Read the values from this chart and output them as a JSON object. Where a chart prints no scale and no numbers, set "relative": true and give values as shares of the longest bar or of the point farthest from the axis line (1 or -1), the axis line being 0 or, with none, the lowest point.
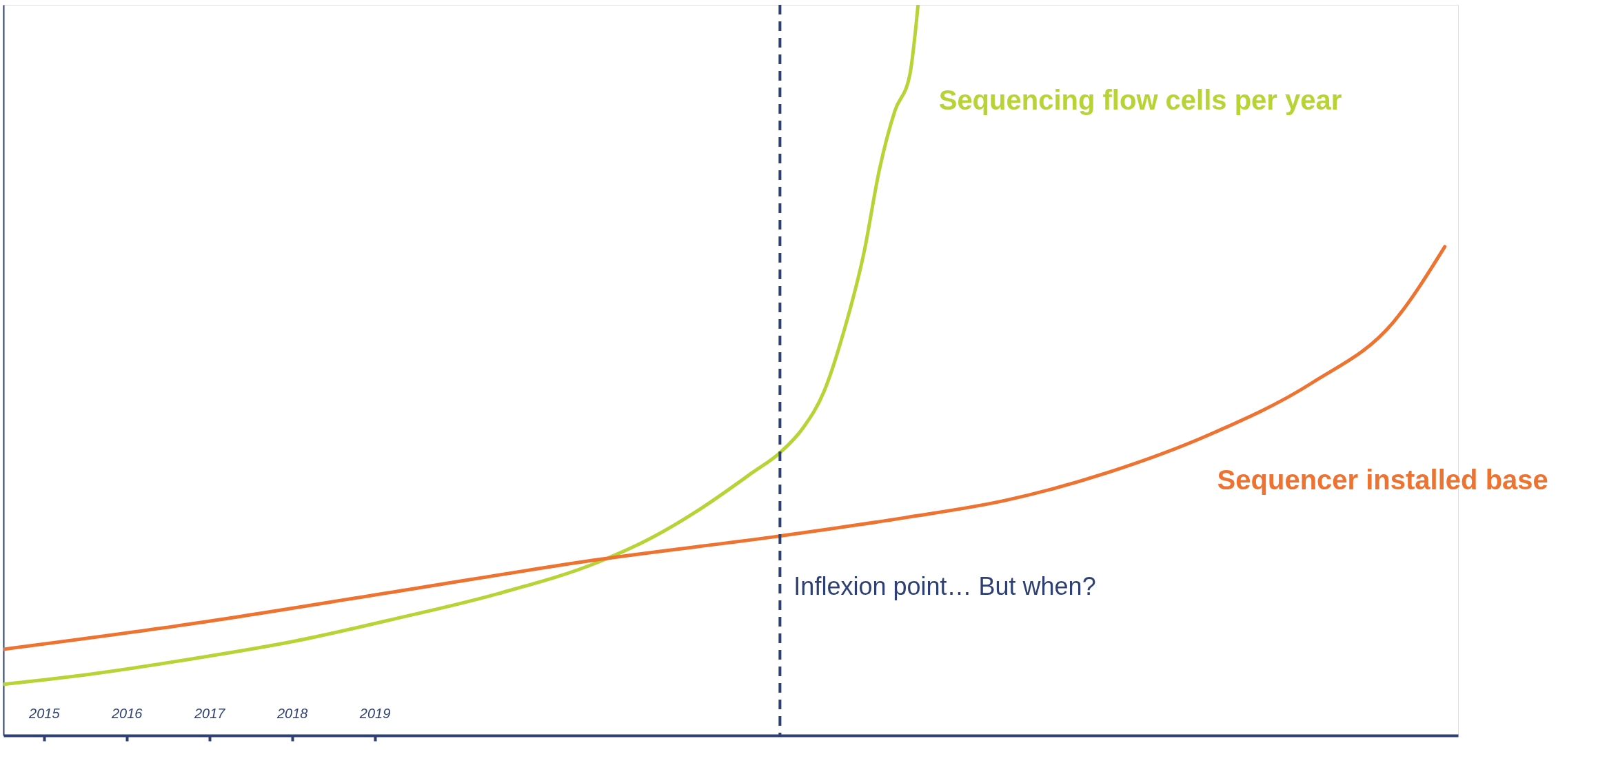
{
  "chart_data": {
    "type": "line",
    "relative": true,
    "xlim": [
      2014.51,
      2032.1
    ],
    "xticks": [
      2015,
      2016,
      2017,
      2018,
      2019
    ],
    "series": [
      {
        "name": "Sequencing flow cells per year",
        "color": "#b8d335",
        "x": [
          2014.51,
          2015.57,
          2016.8,
          2018.03,
          2019.26,
          2020.49,
          2021.72,
          2022.34,
          2022.95,
          2023.57,
          2023.9,
          2024.18,
          2024.43,
          2024.67,
          2024.92,
          2025.1,
          2025.29,
          2025.47,
          2025.57
        ],
        "values": [
          0.07,
          0.084,
          0.105,
          0.129,
          0.16,
          0.194,
          0.238,
          0.27,
          0.311,
          0.36,
          0.387,
          0.421,
          0.47,
          0.552,
          0.663,
          0.773,
          0.855,
          0.904,
          1.0
        ]
      },
      {
        "name": "Sequencer installed base",
        "color": "#ee7230",
        "x": [
          2014.51,
          2016.8,
          2019.26,
          2021.72,
          2023.9,
          2025.41,
          2026.64,
          2027.87,
          2029.1,
          2030.34,
          2031.32,
          2031.94
        ],
        "values": [
          0.118,
          0.153,
          0.197,
          0.241,
          0.273,
          0.298,
          0.322,
          0.36,
          0.412,
          0.483,
          0.566,
          0.669
        ]
      }
    ],
    "ref_lines": [
      {
        "axis": "x",
        "value": 2023.9,
        "label": "Inflexion point… But when?",
        "color": "#2e3f73",
        "line_style": "dashed"
      }
    ],
    "grid": false,
    "marker": "none",
    "line_style": "solid"
  }
}
